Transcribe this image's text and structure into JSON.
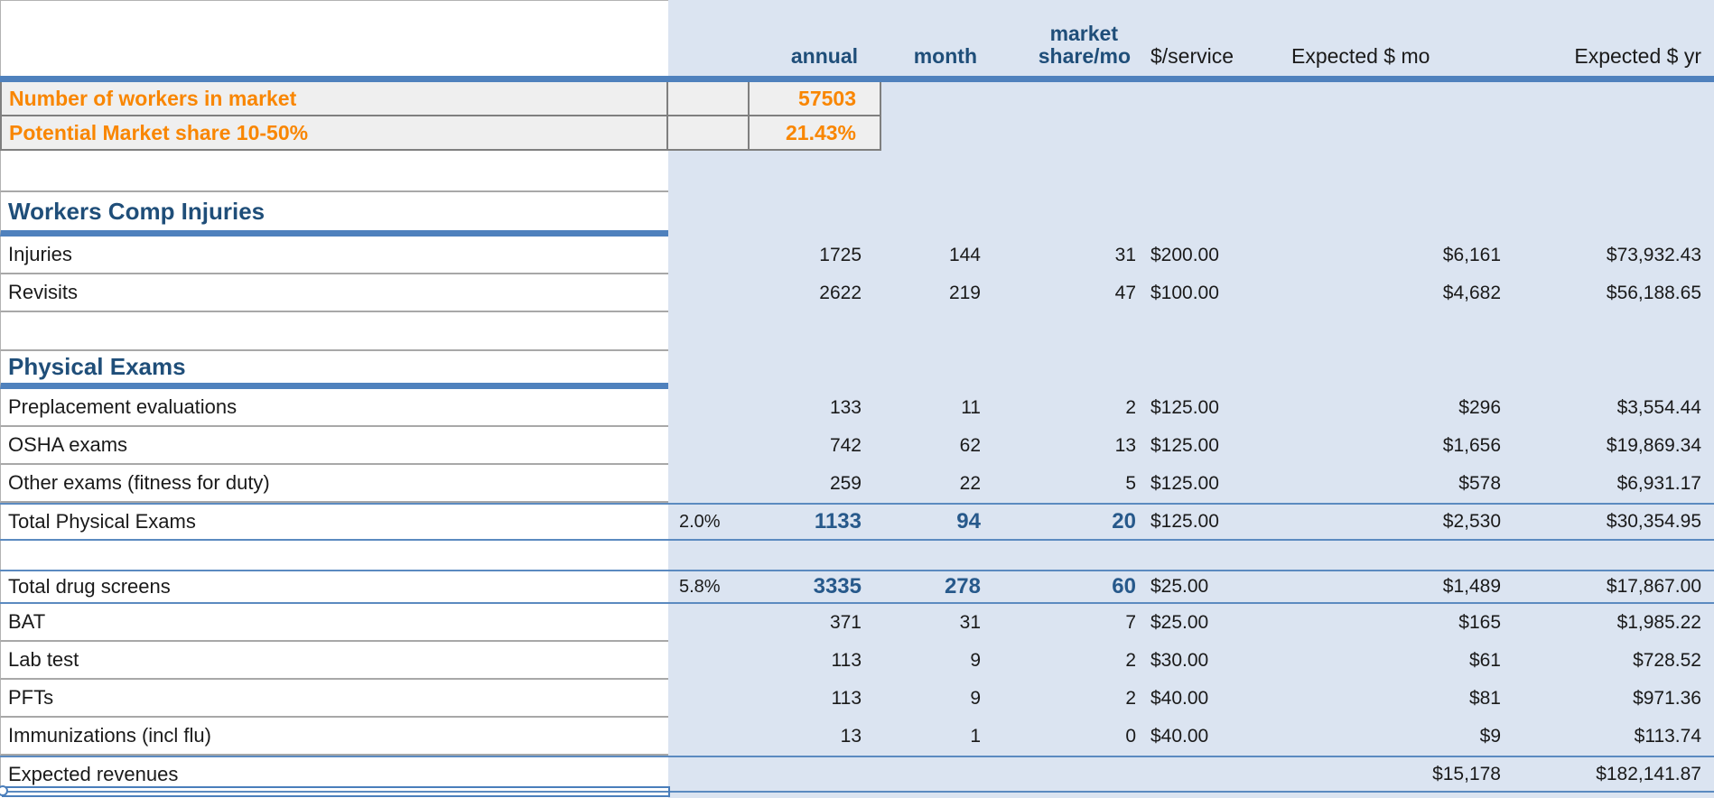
{
  "sheet": {
    "header": {
      "annual": "annual",
      "month": "month",
      "market_share_line1": "market",
      "market_share_line2": "share/mo",
      "service": "$/service",
      "expected_mo": "Expected $ mo",
      "expected_yr": "Expected $ yr"
    },
    "rows": [
      {
        "type": "input",
        "label": "Number of workers in market",
        "annual": "57503"
      },
      {
        "type": "input",
        "label": "Potential Market share 10-50%",
        "annual": "21.43%"
      },
      {
        "type": "blank1"
      },
      {
        "type": "section-lg",
        "label": "Workers Comp Injuries"
      },
      {
        "type": "data",
        "label": "Injuries",
        "annual": "1725",
        "month": "144",
        "share": "31",
        "service": "$200.00",
        "exp_mo": "$6,161",
        "exp_yr": "$73,932.43"
      },
      {
        "type": "data",
        "label": "Revisits",
        "annual": "2622",
        "month": "219",
        "share": "47",
        "service": "$100.00",
        "exp_mo": "$4,682",
        "exp_yr": "$56,188.65"
      },
      {
        "type": "blank"
      },
      {
        "type": "section-sm",
        "label": "Physical Exams"
      },
      {
        "type": "data",
        "label": "Preplacement evaluations",
        "annual": "133",
        "month": "11",
        "share": "2",
        "service": "$125.00",
        "exp_mo": "$296",
        "exp_yr": "$3,554.44"
      },
      {
        "type": "data",
        "label": "OSHA exams",
        "annual": "742",
        "month": "62",
        "share": "13",
        "service": "$125.00",
        "exp_mo": "$1,656",
        "exp_yr": "$19,869.34"
      },
      {
        "type": "data",
        "label": "Other exams (fitness for duty)",
        "annual": "259",
        "month": "22",
        "share": "5",
        "service": "$125.00",
        "exp_mo": "$578",
        "exp_yr": "$6,931.17"
      },
      {
        "type": "total",
        "label": "Total Physical Exams",
        "pct": "2.0%",
        "annual": "1133",
        "month": "94",
        "share": "20",
        "service": "$125.00",
        "exp_mo": "$2,530",
        "exp_yr": "$30,354.95"
      },
      {
        "type": "blank-sm"
      },
      {
        "type": "total-sm",
        "label": "Total drug screens",
        "pct": "5.8%",
        "annual": "3335",
        "month": "278",
        "share": "60",
        "service": "$25.00",
        "exp_mo": "$1,489",
        "exp_yr": "$17,867.00"
      },
      {
        "type": "data",
        "label": "BAT",
        "annual": "371",
        "month": "31",
        "share": "7",
        "service": "$25.00",
        "exp_mo": "$165",
        "exp_yr": "$1,985.22"
      },
      {
        "type": "data",
        "label": "Lab test",
        "annual": "113",
        "month": "9",
        "share": "2",
        "service": "$30.00",
        "exp_mo": "$61",
        "exp_yr": "$728.52"
      },
      {
        "type": "data",
        "label": "PFTs",
        "annual": "113",
        "month": "9",
        "share": "2",
        "service": "$40.00",
        "exp_mo": "$81",
        "exp_yr": "$971.36"
      },
      {
        "type": "data",
        "label": "Immunizations (incl flu)",
        "annual": "13",
        "month": "1",
        "share": "0",
        "service": "$40.00",
        "exp_mo": "$9",
        "exp_yr": "$113.74"
      },
      {
        "type": "grand",
        "label": "Expected revenues",
        "exp_mo": "$15,178",
        "exp_yr": "$182,141.87"
      }
    ],
    "colors": {
      "panel_blue": "#dbe4f1",
      "header_blue": "#1f4e79",
      "bar_blue": "#4f81bd",
      "rule_blue": "#5b8ac0",
      "orange": "#f98600",
      "input_cell_gray": "#efefef"
    }
  }
}
